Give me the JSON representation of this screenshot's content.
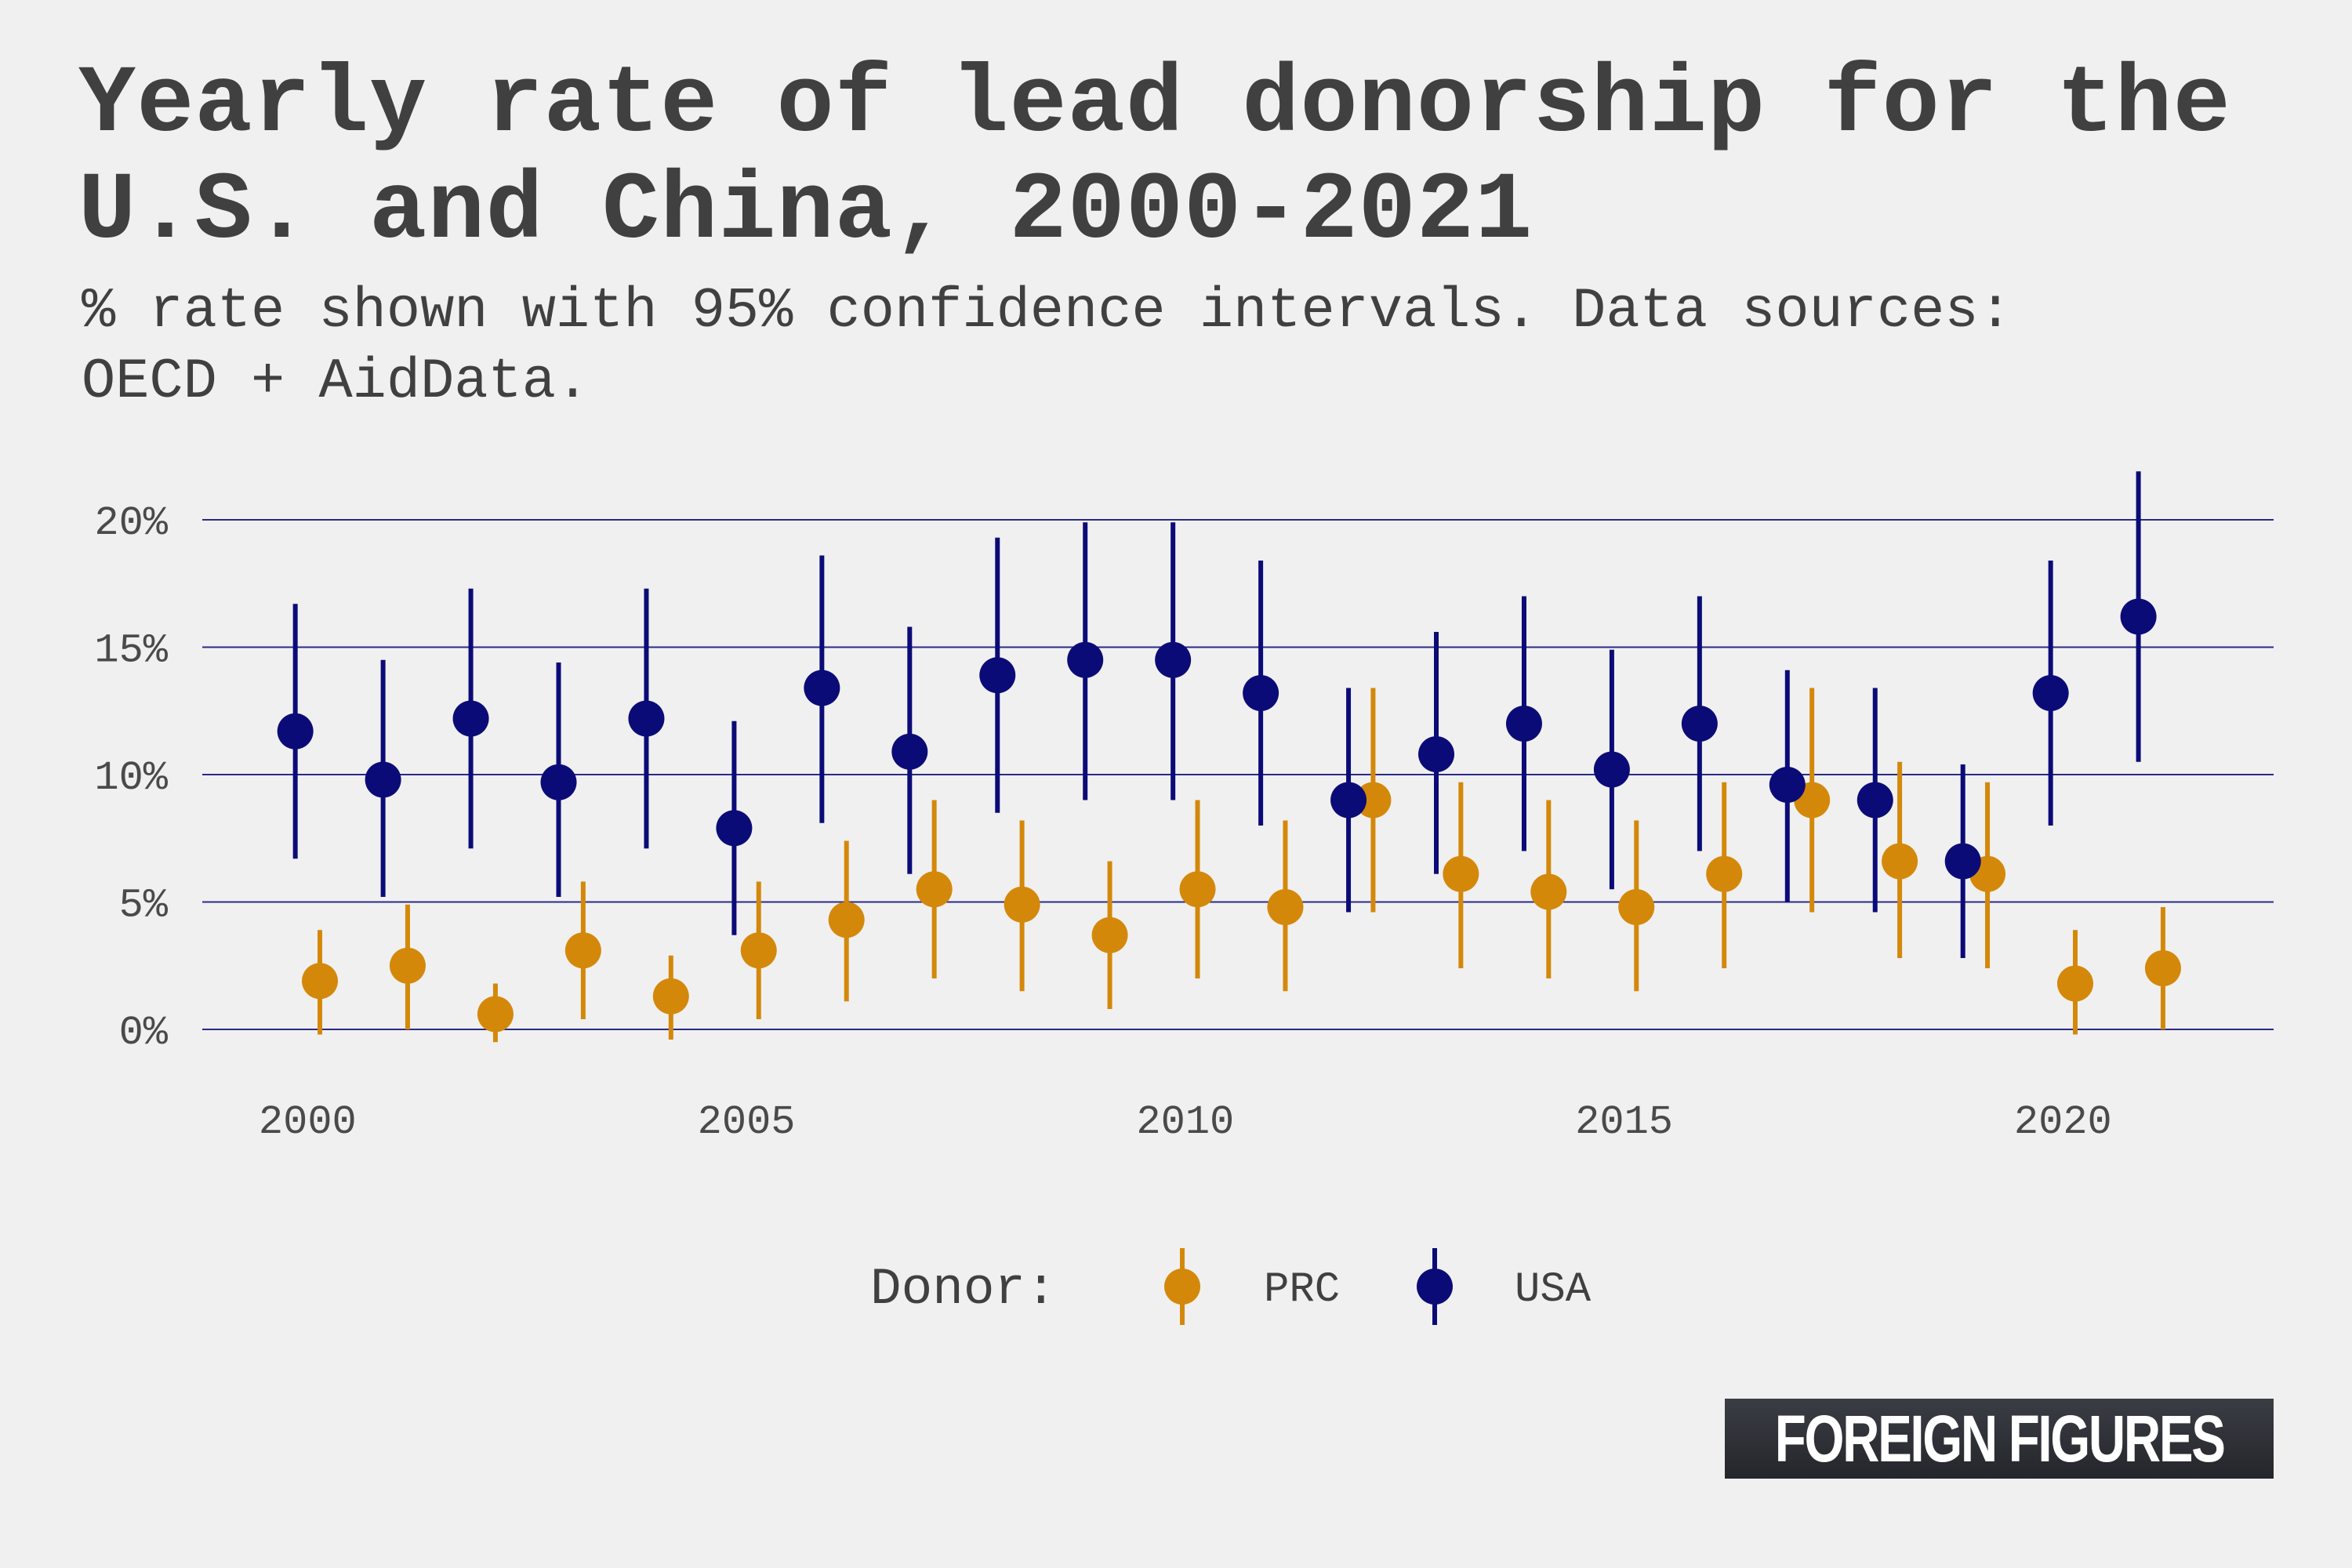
{
  "title": "Yearly rate of lead donorship for the U.S. and China, 2000-2021",
  "subtitle": "% rate shown with 95% confidence intervals. Data sources: OECD + AidData.",
  "logo_text": "FOREIGN FIGURES",
  "chart_data": {
    "type": "scatter",
    "title": "Yearly rate of lead donorship for the U.S. and China, 2000-2021",
    "subtitle": "% rate shown with 95% confidence intervals. Data sources: OECD + AidData.",
    "xlabel": "",
    "ylabel": "",
    "xlim": [
      1998.8,
      2022.4
    ],
    "ylim": [
      0,
      20
    ],
    "x_ticks": [
      2000,
      2005,
      2010,
      2015,
      2020
    ],
    "y_ticks": [
      0,
      5,
      10,
      15,
      20
    ],
    "y_tick_labels": [
      "0%",
      "5%",
      "10%",
      "15%",
      "20%"
    ],
    "grid": "horizontal",
    "legend_title": "Donor:",
    "legend_position": "bottom",
    "colors": {
      "PRC": "#d4880a",
      "USA": "#0b0b78",
      "grid": "#2a2a8a"
    },
    "series": [
      {
        "name": "USA",
        "x": [
          2000,
          2001,
          2002,
          2003,
          2004,
          2005,
          2006,
          2007,
          2008,
          2009,
          2010,
          2011,
          2012,
          2013,
          2014,
          2015,
          2016,
          2017,
          2018,
          2019,
          2020,
          2021
        ],
        "y": [
          11.7,
          9.8,
          12.2,
          9.7,
          12.2,
          7.9,
          13.4,
          10.9,
          13.9,
          14.5,
          14.5,
          13.2,
          9.0,
          10.8,
          12.0,
          10.2,
          12.0,
          9.6,
          9.0,
          6.6,
          13.2,
          16.2
        ],
        "lower": [
          6.7,
          5.2,
          7.1,
          5.2,
          7.1,
          3.7,
          8.1,
          6.1,
          8.5,
          9.0,
          9.0,
          8.0,
          4.6,
          6.1,
          7.0,
          5.5,
          7.0,
          5.0,
          4.6,
          2.8,
          8.0,
          10.5
        ],
        "upper": [
          16.7,
          14.5,
          17.3,
          14.4,
          17.3,
          12.1,
          18.6,
          15.8,
          19.3,
          19.9,
          19.9,
          18.4,
          13.4,
          15.6,
          17.0,
          14.9,
          17.0,
          14.1,
          13.4,
          10.4,
          18.4,
          21.9
        ]
      },
      {
        "name": "PRC",
        "x": [
          2000,
          2001,
          2002,
          2003,
          2004,
          2005,
          2006,
          2007,
          2008,
          2009,
          2010,
          2011,
          2012,
          2013,
          2014,
          2015,
          2016,
          2017,
          2018,
          2019,
          2020,
          2021
        ],
        "y": [
          1.9,
          2.5,
          0.6,
          3.1,
          1.3,
          3.1,
          4.3,
          5.5,
          4.9,
          3.7,
          5.5,
          4.8,
          9.0,
          6.1,
          5.4,
          4.8,
          6.1,
          9.0,
          6.6,
          6.1,
          1.8,
          2.4
        ],
        "lower": [
          -0.2,
          0.0,
          -0.5,
          0.4,
          -0.4,
          0.4,
          1.1,
          2.0,
          1.5,
          0.8,
          2.0,
          1.5,
          4.6,
          2.4,
          2.0,
          1.5,
          2.4,
          4.6,
          2.8,
          2.4,
          -0.2,
          0.0
        ],
        "upper": [
          3.9,
          4.9,
          1.8,
          5.8,
          2.9,
          5.8,
          7.4,
          9.0,
          8.2,
          6.6,
          9.0,
          8.2,
          13.4,
          9.7,
          9.0,
          8.2,
          9.7,
          13.4,
          10.5,
          9.7,
          3.9,
          4.8
        ]
      }
    ]
  }
}
